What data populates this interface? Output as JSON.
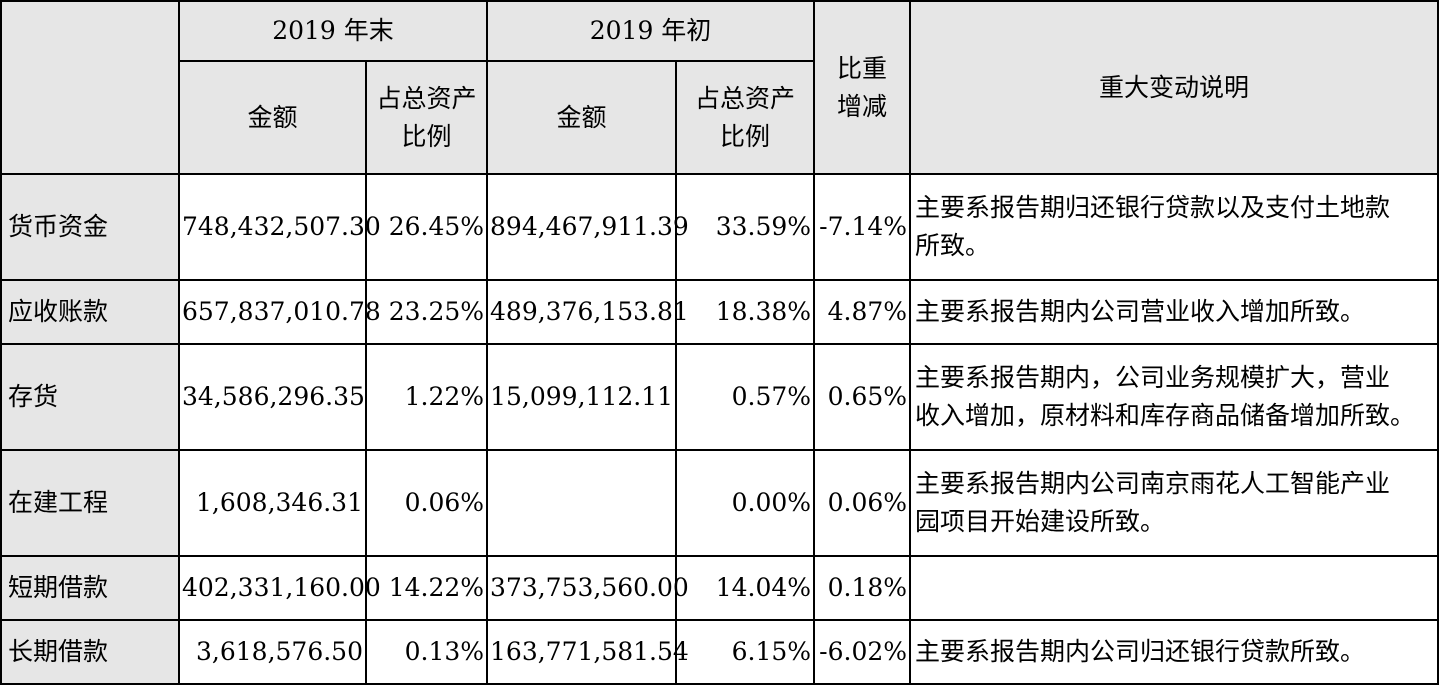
{
  "header": {
    "end_of_year": "2019 年末",
    "start_of_year": "2019 年初",
    "amount": "金额",
    "ratio_line1": "占总资产",
    "ratio_line2": "比例",
    "change_line1": "比重",
    "change_line2": "增减",
    "explanation": "重大变动说明"
  },
  "rows": [
    {
      "item": "货币资金",
      "end_amount": "748,432,507.30",
      "end_ratio": "26.45%",
      "start_amount": "894,467,911.39",
      "start_ratio": "33.59%",
      "change": "-7.14%",
      "note_line1": "主要系报告期归还银行贷款以及支付土地款",
      "note_line2": "所致。"
    },
    {
      "item": "应收账款",
      "end_amount": "657,837,010.78",
      "end_ratio": "23.25%",
      "start_amount": "489,376,153.81",
      "start_ratio": "18.38%",
      "change": "4.87%",
      "note_line1": "主要系报告期内公司营业收入增加所致。",
      "note_line2": ""
    },
    {
      "item": "存货",
      "end_amount": "34,586,296.35",
      "end_ratio": "1.22%",
      "start_amount": "15,099,112.11",
      "start_ratio": "0.57%",
      "change": "0.65%",
      "note_line1": "主要系报告期内，公司业务规模扩大，营业",
      "note_line2": "收入增加，原材料和库存商品储备增加所致。"
    },
    {
      "item": "在建工程",
      "end_amount": "1,608,346.31",
      "end_ratio": "0.06%",
      "start_amount": "",
      "start_ratio": "0.00%",
      "change": "0.06%",
      "note_line1": "主要系报告期内公司南京雨花人工智能产业",
      "note_line2": "园项目开始建设所致。"
    },
    {
      "item": "短期借款",
      "end_amount": "402,331,160.00",
      "end_ratio": "14.22%",
      "start_amount": "373,753,560.00",
      "start_ratio": "14.04%",
      "change": "0.18%",
      "note_line1": "",
      "note_line2": ""
    },
    {
      "item": "长期借款",
      "end_amount": "3,618,576.50",
      "end_ratio": "0.13%",
      "start_amount": "163,771,581.54",
      "start_ratio": "6.15%",
      "change": "-6.02%",
      "note_line1": "主要系报告期内公司归还银行贷款所致。",
      "note_line2": ""
    }
  ]
}
